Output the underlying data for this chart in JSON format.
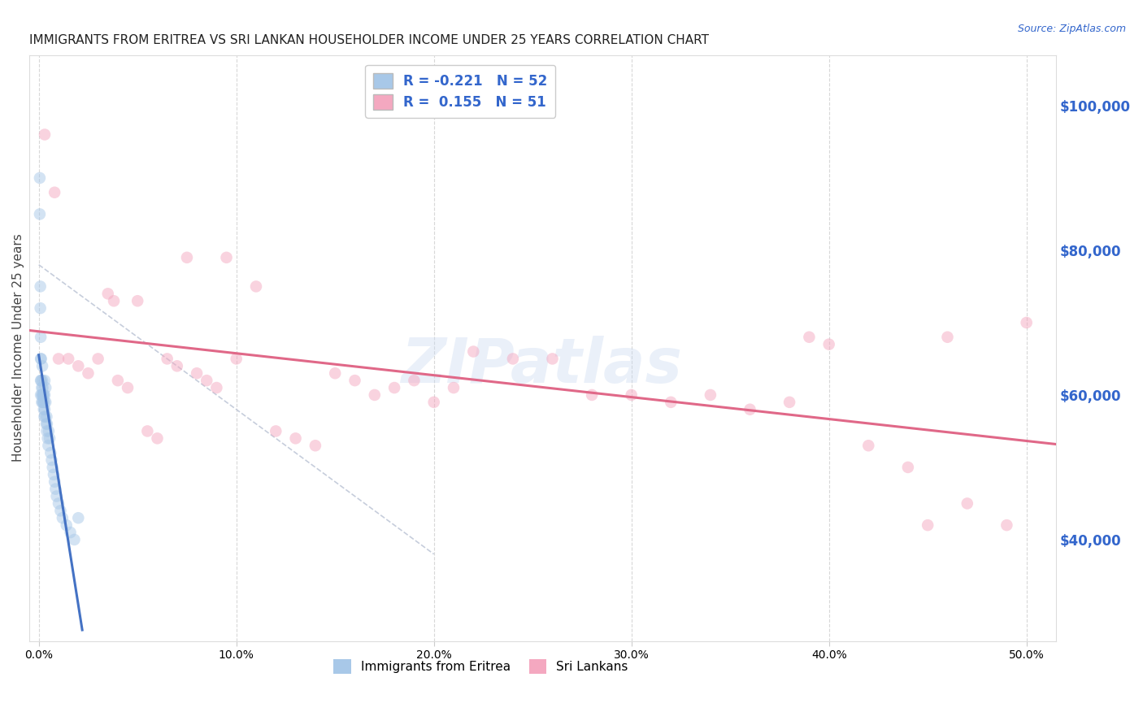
{
  "title": "IMMIGRANTS FROM ERITREA VS SRI LANKAN HOUSEHOLDER INCOME UNDER 25 YEARS CORRELATION CHART",
  "source": "Source: ZipAtlas.com",
  "ylabel": "Householder Income Under 25 years",
  "xlabel_ticks": [
    "0.0%",
    "10.0%",
    "20.0%",
    "30.0%",
    "40.0%",
    "50.0%"
  ],
  "xlabel_vals": [
    0.0,
    10.0,
    20.0,
    30.0,
    40.0,
    50.0
  ],
  "ylabel_right_ticks": [
    "$40,000",
    "$60,000",
    "$80,000",
    "$100,000"
  ],
  "ylabel_right_vals": [
    40000,
    60000,
    80000,
    100000
  ],
  "ylim": [
    26000,
    107000
  ],
  "xlim": [
    -0.5,
    51.5
  ],
  "r_eritrea": -0.221,
  "n_eritrea": 52,
  "r_srilanka": 0.155,
  "n_srilanka": 51,
  "color_eritrea": "#a8c8e8",
  "color_eritrea_line": "#4472c4",
  "color_srilanka": "#f4a8c0",
  "color_srilanka_line": "#e06888",
  "color_diag_line": "#c0c8d8",
  "watermark": "ZIPatlas",
  "legend_eritrea": "Immigrants from Eritrea",
  "legend_srilanka": "Sri Lankans",
  "eritrea_x": [
    0.05,
    0.05,
    0.08,
    0.08,
    0.1,
    0.1,
    0.1,
    0.1,
    0.12,
    0.12,
    0.15,
    0.15,
    0.15,
    0.18,
    0.18,
    0.2,
    0.2,
    0.2,
    0.22,
    0.22,
    0.25,
    0.25,
    0.28,
    0.28,
    0.3,
    0.3,
    0.3,
    0.32,
    0.35,
    0.35,
    0.38,
    0.4,
    0.4,
    0.42,
    0.45,
    0.48,
    0.5,
    0.55,
    0.6,
    0.65,
    0.7,
    0.75,
    0.8,
    0.85,
    0.9,
    1.0,
    1.1,
    1.2,
    1.4,
    1.6,
    1.8,
    2.0
  ],
  "eritrea_y": [
    90000,
    85000,
    75000,
    72000,
    68000,
    65000,
    62000,
    60000,
    65000,
    62000,
    61000,
    60000,
    59000,
    64000,
    62000,
    61000,
    60000,
    59000,
    60000,
    59000,
    60000,
    58000,
    59000,
    57000,
    62000,
    60000,
    58000,
    57000,
    61000,
    59000,
    56000,
    55000,
    57000,
    56000,
    54000,
    53000,
    55000,
    54000,
    52000,
    51000,
    50000,
    49000,
    48000,
    47000,
    46000,
    45000,
    44000,
    43000,
    42000,
    41000,
    40000,
    43000
  ],
  "srilanka_x": [
    0.3,
    0.8,
    1.0,
    1.5,
    2.0,
    2.5,
    3.0,
    3.5,
    3.8,
    4.0,
    4.5,
    5.0,
    5.5,
    6.0,
    6.5,
    7.0,
    7.5,
    8.0,
    8.5,
    9.0,
    9.5,
    10.0,
    11.0,
    12.0,
    13.0,
    14.0,
    15.0,
    16.0,
    17.0,
    18.0,
    19.0,
    20.0,
    21.0,
    22.0,
    24.0,
    26.0,
    28.0,
    30.0,
    32.0,
    34.0,
    36.0,
    38.0,
    39.0,
    40.0,
    42.0,
    44.0,
    45.0,
    46.0,
    47.0,
    49.0,
    50.0
  ],
  "srilanka_y": [
    96000,
    88000,
    65000,
    65000,
    64000,
    63000,
    65000,
    74000,
    73000,
    62000,
    61000,
    73000,
    55000,
    54000,
    65000,
    64000,
    79000,
    63000,
    62000,
    61000,
    79000,
    65000,
    75000,
    55000,
    54000,
    53000,
    63000,
    62000,
    60000,
    61000,
    62000,
    59000,
    61000,
    66000,
    65000,
    65000,
    60000,
    60000,
    59000,
    60000,
    58000,
    59000,
    68000,
    67000,
    53000,
    50000,
    42000,
    68000,
    45000,
    42000,
    70000
  ],
  "background_color": "#ffffff",
  "grid_color": "#d8d8d8",
  "title_fontsize": 11,
  "axis_label_fontsize": 11,
  "tick_fontsize": 10,
  "marker_size": 110,
  "marker_alpha": 0.5,
  "line_width": 2.2
}
